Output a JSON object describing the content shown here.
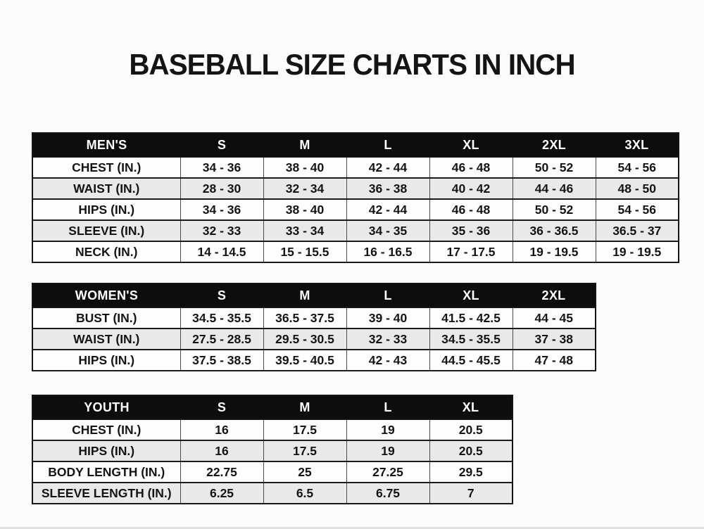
{
  "page": {
    "title": "BASEBALL SIZE CHARTS IN INCH"
  },
  "colors": {
    "header_bg": "#0d0d0d",
    "header_text": "#ffffff",
    "row_bg": "#fdfdfd",
    "row_alt_bg": "#e9e9e9",
    "border": "#141414",
    "page_bg": "#fcfcfc"
  },
  "tables": [
    {
      "name": "mens",
      "header": [
        "MEN'S",
        "S",
        "M",
        "L",
        "XL",
        "2XL",
        "3XL"
      ],
      "rows": [
        [
          "CHEST (IN.)",
          "34 - 36",
          "38 - 40",
          "42 - 44",
          "46 - 48",
          "50 - 52",
          "54 - 56"
        ],
        [
          "WAIST (IN.)",
          "28 - 30",
          "32 - 34",
          "36 - 38",
          "40 - 42",
          "44 - 46",
          "48 - 50"
        ],
        [
          "HIPS (IN.)",
          "34 - 36",
          "38 - 40",
          "42 - 44",
          "46 - 48",
          "50 - 52",
          "54 - 56"
        ],
        [
          "SLEEVE (IN.)",
          "32 - 33",
          "33 - 34",
          "34 - 35",
          "35 - 36",
          "36 - 36.5",
          "36.5 - 37"
        ],
        [
          "NECK (IN.)",
          "14 - 14.5",
          "15 - 15.5",
          "16 - 16.5",
          "17 - 17.5",
          "19 - 19.5",
          "19 - 19.5"
        ]
      ]
    },
    {
      "name": "womens",
      "header": [
        "WOMEN'S",
        "S",
        "M",
        "L",
        "XL",
        "2XL"
      ],
      "rows": [
        [
          "BUST (IN.)",
          "34.5 - 35.5",
          "36.5 - 37.5",
          "39 - 40",
          "41.5 - 42.5",
          "44 - 45"
        ],
        [
          "WAIST (IN.)",
          "27.5 - 28.5",
          "29.5 - 30.5",
          "32 - 33",
          "34.5 - 35.5",
          "37 - 38"
        ],
        [
          "HIPS (IN.)",
          "37.5 - 38.5",
          "39.5 - 40.5",
          "42 - 43",
          "44.5 - 45.5",
          "47 - 48"
        ]
      ]
    },
    {
      "name": "youth",
      "header": [
        "YOUTH",
        "S",
        "M",
        "L",
        "XL"
      ],
      "rows": [
        [
          "CHEST (IN.)",
          "16",
          "17.5",
          "19",
          "20.5"
        ],
        [
          "HIPS (IN.)",
          "16",
          "17.5",
          "19",
          "20.5"
        ],
        [
          "BODY LENGTH (IN.)",
          "22.75",
          "25",
          "27.25",
          "29.5"
        ],
        [
          "SLEEVE LENGTH (IN.)",
          "6.25",
          "6.5",
          "6.75",
          "7"
        ]
      ]
    }
  ]
}
